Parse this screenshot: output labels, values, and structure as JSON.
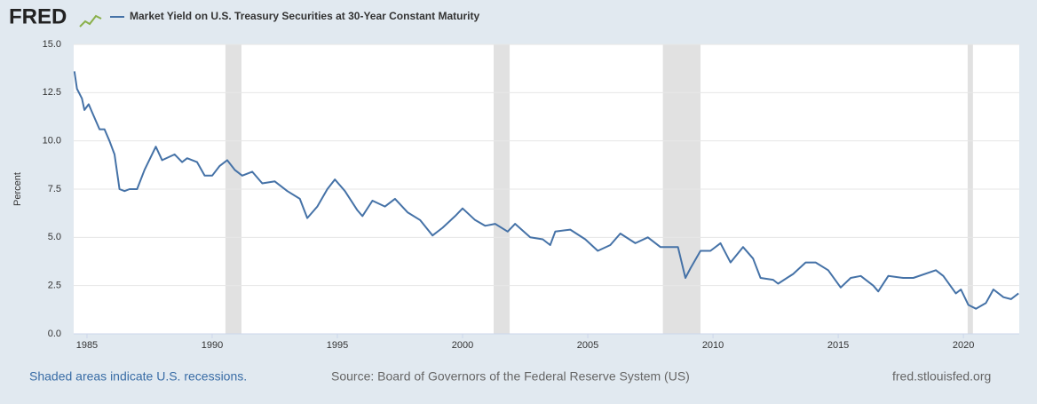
{
  "logo": "FRED",
  "chart_data": {
    "type": "line",
    "ylabel": "Percent",
    "x": [
      1984.5,
      1984.6,
      1984.8,
      1984.9,
      1985.07,
      1985.2,
      1985.5,
      1985.7,
      1985.9,
      1986.1,
      1986.3,
      1986.5,
      1986.7,
      1987.0,
      1987.3,
      1987.75,
      1988.0,
      1988.5,
      1988.8,
      1989.0,
      1989.4,
      1989.7,
      1990.0,
      1990.3,
      1990.6,
      1990.9,
      1991.2,
      1991.6,
      1992.0,
      1992.5,
      1993.0,
      1993.5,
      1993.8,
      1994.2,
      1994.6,
      1994.9,
      1995.3,
      1995.8,
      1996.0,
      1996.4,
      1996.9,
      1997.3,
      1997.8,
      1998.3,
      1998.8,
      1999.2,
      1999.7,
      2000.0,
      2000.5,
      2000.9,
      2001.3,
      2001.8,
      2002.1,
      2002.7,
      2003.2,
      2003.5,
      2003.7,
      2004.3,
      2004.9,
      2005.4,
      2005.9,
      2006.3,
      2006.9,
      2007.4,
      2007.9,
      2008.3,
      2008.6,
      2008.9,
      2009.1,
      2009.5,
      2009.9,
      2010.3,
      2010.7,
      2011.2,
      2011.6,
      2011.9,
      2012.4,
      2012.6,
      2013.2,
      2013.7,
      2014.1,
      2014.6,
      2015.1,
      2015.5,
      2015.9,
      2016.4,
      2016.6,
      2017.0,
      2017.6,
      2018.0,
      2018.9,
      2019.2,
      2019.7,
      2019.9,
      2020.2,
      2020.5,
      2020.9,
      2021.2,
      2021.6,
      2021.9,
      2022.2
    ],
    "series": [
      {
        "name": "Market Yield on U.S. Treasury Securities at 30-Year Constant Maturity",
        "color": "#4572a7",
        "values": [
          13.6,
          12.7,
          12.2,
          11.6,
          11.9,
          11.5,
          10.6,
          10.6,
          10.0,
          9.3,
          7.5,
          7.4,
          7.5,
          7.5,
          8.5,
          9.7,
          9.0,
          9.3,
          8.9,
          9.1,
          8.9,
          8.2,
          8.2,
          8.7,
          9.0,
          8.5,
          8.2,
          8.4,
          7.8,
          7.9,
          7.4,
          7.0,
          6.0,
          6.6,
          7.5,
          8.0,
          7.4,
          6.4,
          6.1,
          6.9,
          6.6,
          7.0,
          6.3,
          5.9,
          5.1,
          5.5,
          6.1,
          6.5,
          5.9,
          5.6,
          5.7,
          5.3,
          5.7,
          5.0,
          4.9,
          4.6,
          5.3,
          5.4,
          4.9,
          4.3,
          4.6,
          5.2,
          4.7,
          5.0,
          4.5,
          4.5,
          4.5,
          2.9,
          3.4,
          4.3,
          4.3,
          4.7,
          3.7,
          4.5,
          3.9,
          2.9,
          2.8,
          2.6,
          3.1,
          3.7,
          3.7,
          3.3,
          2.4,
          2.9,
          3.0,
          2.5,
          2.2,
          3.0,
          2.9,
          2.9,
          3.3,
          3.0,
          2.1,
          2.3,
          1.5,
          1.3,
          1.6,
          2.3,
          1.9,
          1.8,
          2.1
        ]
      }
    ],
    "recessions": [
      [
        1990.53,
        1991.17
      ],
      [
        2001.24,
        2001.88
      ],
      [
        2008.0,
        2009.5
      ],
      [
        2020.17,
        2020.38
      ]
    ],
    "recession_color": "#e1e1e1",
    "xlim": [
      1984.47,
      2022.23
    ],
    "xticks": [
      1985,
      1990,
      1995,
      2000,
      2005,
      2010,
      2015,
      2020
    ],
    "ylim": [
      0,
      15
    ],
    "yticks": [
      {
        "value": 0,
        "label": "0.0"
      },
      {
        "value": 2.5,
        "label": "2.5"
      },
      {
        "value": 5,
        "label": "5.0"
      },
      {
        "value": 7.5,
        "label": "7.5"
      },
      {
        "value": 10,
        "label": "10.0"
      },
      {
        "value": 12.5,
        "label": "12.5"
      },
      {
        "value": 15,
        "label": "15.0"
      }
    ],
    "grid": true
  },
  "footer": {
    "note": "Shaded areas indicate U.S. recessions.",
    "source": "Source: Board of Governors of the Federal Reserve System (US)",
    "site": "fred.stlouisfed.org"
  }
}
